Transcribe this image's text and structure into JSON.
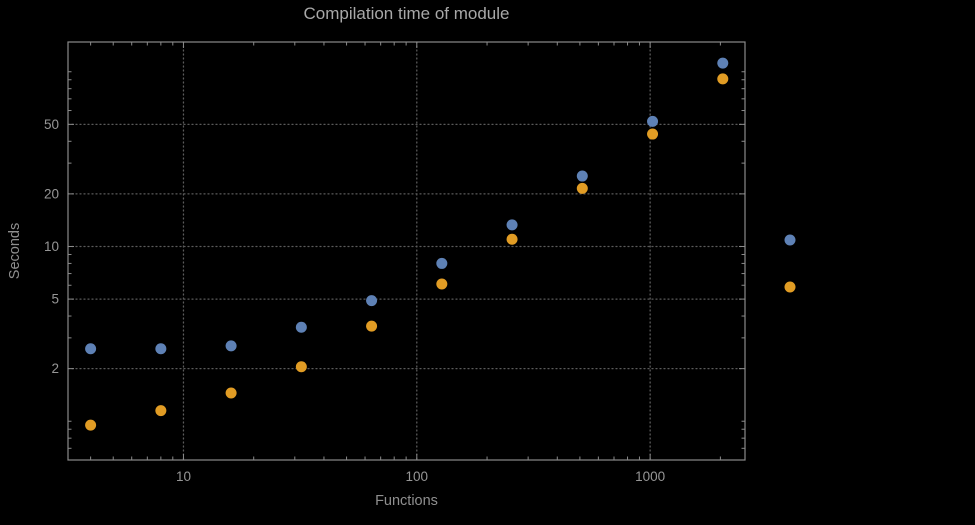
{
  "colors": {
    "background": "#000000",
    "frame": "#8a8a8a",
    "grid": "#5a5a5a",
    "text": "#969696",
    "series1": "#5e81b5",
    "series2": "#e19c24"
  },
  "chart_data": {
    "type": "scatter",
    "title": "Compilation time of module",
    "xlabel": "Functions",
    "ylabel": "Seconds",
    "x_scale": "log",
    "y_scale": "log",
    "grid": true,
    "grid_style": "dotted",
    "legend_position": "right-outside",
    "xlim": [
      3.2,
      2550
    ],
    "ylim": [
      0.6,
      148
    ],
    "x_ticks": [
      10,
      100,
      1000
    ],
    "x_tick_labels": [
      "10",
      "100",
      "1000"
    ],
    "y_ticks": [
      2,
      5,
      10,
      20,
      50
    ],
    "y_tick_labels": [
      "2",
      "5",
      "10",
      "20",
      "50"
    ],
    "x": [
      4,
      8,
      16,
      32,
      64,
      128,
      256,
      512,
      1024,
      2048
    ],
    "series": [
      {
        "name": "series-1-blue",
        "color": "#5e81b5",
        "values": [
          2.6,
          2.6,
          2.7,
          3.45,
          4.9,
          8.0,
          13.3,
          25.3,
          52,
          112
        ]
      },
      {
        "name": "series-2-orange",
        "color": "#e19c24",
        "values": [
          0.95,
          1.15,
          1.45,
          2.05,
          3.5,
          6.1,
          11,
          21.5,
          44,
          91
        ]
      }
    ],
    "legend": {
      "marker_colors": [
        "#5e81b5",
        "#e19c24"
      ],
      "labels": []
    }
  }
}
